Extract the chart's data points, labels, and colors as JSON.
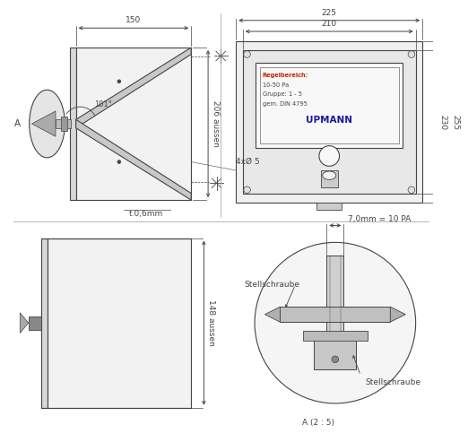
{
  "bg_color": "#ffffff",
  "lc": "#444444",
  "fs": 6.5,
  "top_left": {
    "dim_150": "150",
    "dim_206": "206 aussen",
    "dim_101": "101°",
    "dim_t06": "t.0,6mm",
    "dim_4x5": "4xØ 5"
  },
  "top_right": {
    "dim_225": "225",
    "dim_210": "210",
    "dim_230": "230",
    "dim_255": "255",
    "label1": "Regelbereich:",
    "label2": "10-50 Pa",
    "label3": "Gruppe: 1 - 5",
    "label4": "gem. DIN 4795",
    "brand": "UPMANN"
  },
  "bot_left": {
    "dim_148": "148 aussen"
  },
  "bot_right": {
    "dim_7mm": "7,0mm = 10 PA",
    "stell1": "Stellschraube",
    "stell2": "Stellschraube",
    "scale": "A (2 : 5)"
  }
}
